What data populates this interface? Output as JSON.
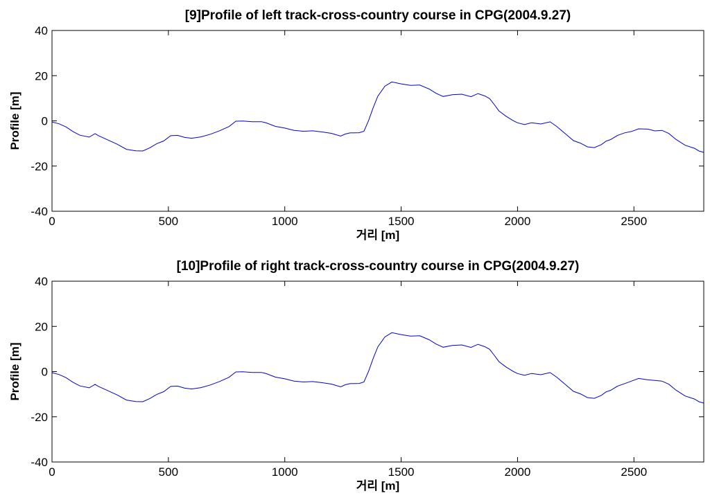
{
  "chart_data": [
    {
      "type": "line",
      "title": "[9]Profile of left track-cross-country course in CPG(2004.9.27)",
      "xlabel": "거리 [m]",
      "ylabel": "Profile [m]",
      "xlim": [
        0,
        2800
      ],
      "ylim": [
        -40,
        40
      ],
      "xticks": [
        0,
        500,
        1000,
        1500,
        2000,
        2500
      ],
      "yticks": [
        -40,
        -20,
        0,
        20,
        40
      ],
      "grid": false,
      "legend": "none",
      "line_color": "#0000cc",
      "series": [
        {
          "x": [
            0,
            30,
            60,
            90,
            120,
            160,
            185,
            200,
            240,
            280,
            320,
            360,
            390,
            420,
            450,
            480,
            510,
            540,
            570,
            600,
            640,
            680,
            720,
            760,
            790,
            820,
            860,
            900,
            920,
            960,
            1000,
            1040,
            1080,
            1120,
            1160,
            1200,
            1240,
            1260,
            1280,
            1320,
            1340,
            1360,
            1380,
            1400,
            1430,
            1460,
            1500,
            1540,
            1580,
            1620,
            1650,
            1680,
            1720,
            1760,
            1800,
            1830,
            1860,
            1880,
            1900,
            1920,
            1950,
            1980,
            2000,
            2030,
            2060,
            2100,
            2140,
            2170,
            2190,
            2210,
            2240,
            2270,
            2300,
            2330,
            2360,
            2380,
            2400,
            2430,
            2460,
            2490,
            2520,
            2560,
            2590,
            2620,
            2650,
            2680,
            2720,
            2760,
            2780,
            2800
          ],
          "values": [
            -0.5,
            -1.5,
            -2.5,
            -4.5,
            -6.5,
            -7.0,
            -5.5,
            -6.5,
            -8.5,
            -10.5,
            -12.5,
            -13.0,
            -13.0,
            -12.0,
            -10.0,
            -8.5,
            -6.5,
            -6.5,
            -7.0,
            -7.5,
            -7.0,
            -6.0,
            -4.5,
            -2.5,
            -0.5,
            -0.3,
            -0.5,
            -0.3,
            -0.5,
            -2.5,
            -3.5,
            -4.0,
            -4.5,
            -4.5,
            -5.0,
            -5.5,
            -6.5,
            -6.0,
            -5.5,
            -5.5,
            -4.5,
            0.5,
            6.0,
            11.0,
            15.5,
            17.0,
            16.5,
            16.0,
            15.5,
            14.0,
            12.0,
            11.0,
            11.5,
            11.5,
            11.0,
            12.0,
            11.0,
            9.5,
            7.0,
            4.5,
            2.0,
            0.5,
            -1.0,
            -1.5,
            -1.0,
            -1.0,
            -0.5,
            -2.5,
            -4.0,
            -6.0,
            -8.5,
            -10.0,
            -11.5,
            -11.5,
            -10.5,
            -9.0,
            -8.0,
            -6.5,
            -5.5,
            -4.5,
            -3.5,
            -3.5,
            -4.5,
            -4.5,
            -5.5,
            -8.0,
            -10.5,
            -12.5,
            -13.5,
            -14.0
          ]
        }
      ]
    },
    {
      "type": "line",
      "title": "[10]Profile of right track-cross-country course in CPG(2004.9.27)",
      "xlabel": "거리 [m]",
      "ylabel": "Profile [m]",
      "xlim": [
        0,
        2800
      ],
      "ylim": [
        -40,
        40
      ],
      "xticks": [
        0,
        500,
        1000,
        1500,
        2000,
        2500
      ],
      "yticks": [
        -40,
        -20,
        0,
        20,
        40
      ],
      "grid": false,
      "legend": "none",
      "line_color": "#0000cc",
      "series": [
        {
          "x": [
            0,
            30,
            60,
            90,
            120,
            160,
            185,
            200,
            240,
            280,
            320,
            360,
            390,
            420,
            450,
            480,
            510,
            540,
            570,
            600,
            640,
            680,
            720,
            760,
            790,
            820,
            860,
            900,
            920,
            960,
            1000,
            1040,
            1080,
            1120,
            1160,
            1200,
            1240,
            1260,
            1280,
            1320,
            1340,
            1360,
            1380,
            1400,
            1430,
            1460,
            1500,
            1540,
            1580,
            1620,
            1650,
            1680,
            1720,
            1760,
            1800,
            1830,
            1860,
            1880,
            1900,
            1920,
            1950,
            1980,
            2000,
            2030,
            2060,
            2100,
            2140,
            2170,
            2190,
            2210,
            2240,
            2270,
            2300,
            2330,
            2360,
            2380,
            2400,
            2430,
            2460,
            2490,
            2520,
            2560,
            2590,
            2620,
            2650,
            2680,
            2720,
            2760,
            2780,
            2800
          ],
          "values": [
            -0.5,
            -1.5,
            -2.5,
            -4.5,
            -6.5,
            -7.0,
            -5.5,
            -6.5,
            -8.5,
            -10.5,
            -12.5,
            -13.0,
            -13.0,
            -12.0,
            -10.0,
            -8.5,
            -6.5,
            -6.5,
            -7.0,
            -7.5,
            -7.0,
            -6.0,
            -4.5,
            -2.5,
            -0.5,
            -0.3,
            -0.5,
            -0.3,
            -0.5,
            -2.5,
            -3.5,
            -4.0,
            -4.5,
            -4.5,
            -5.0,
            -5.5,
            -6.5,
            -6.0,
            -5.5,
            -5.5,
            -4.5,
            0.5,
            6.0,
            11.0,
            15.5,
            17.0,
            16.5,
            16.0,
            15.5,
            14.0,
            12.0,
            11.0,
            11.5,
            11.5,
            11.0,
            12.0,
            11.0,
            9.5,
            7.0,
            4.5,
            2.0,
            0.5,
            -1.0,
            -1.5,
            -1.0,
            -1.0,
            -0.5,
            -2.5,
            -4.0,
            -6.0,
            -8.5,
            -10.0,
            -11.5,
            -11.5,
            -10.5,
            -9.0,
            -8.0,
            -6.5,
            -5.5,
            -4.0,
            -3.0,
            -3.5,
            -4.0,
            -4.5,
            -5.5,
            -8.0,
            -10.5,
            -12.5,
            -13.5,
            -14.0
          ]
        }
      ]
    }
  ]
}
